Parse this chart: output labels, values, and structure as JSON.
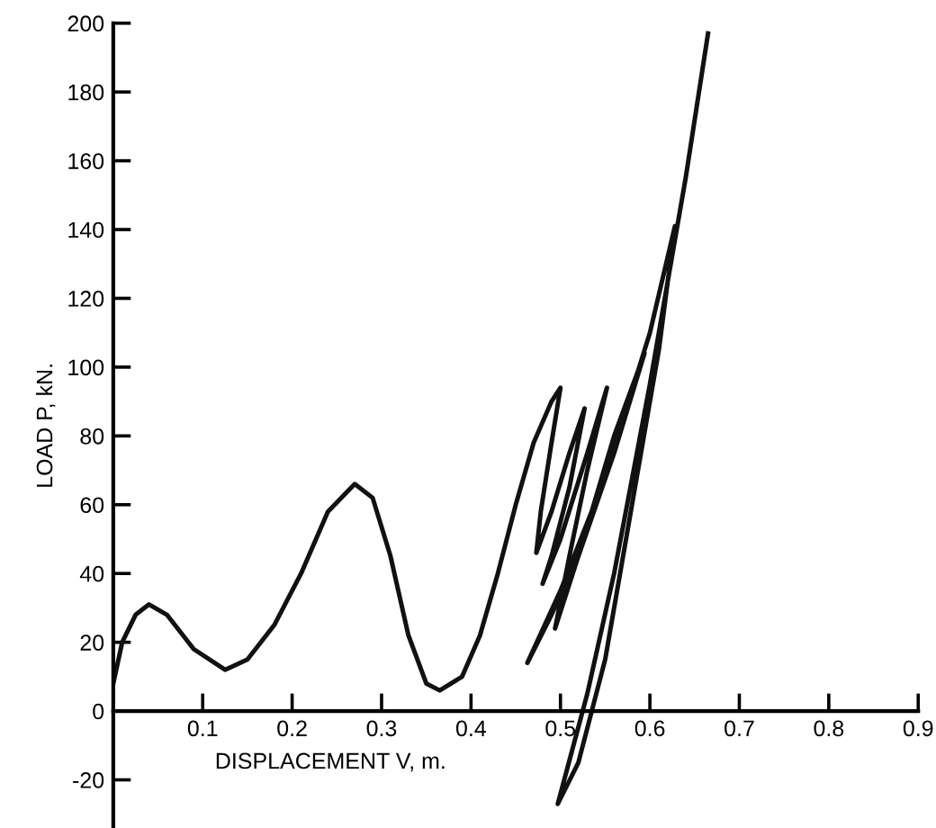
{
  "chart_data": {
    "type": "line",
    "xlabel": "DISPLACEMENT V, m.",
    "ylabel": "LOAD P, kN.",
    "series": [
      {
        "color": "#111111",
        "x": [
          0,
          0.01,
          0.025,
          0.04,
          0.06,
          0.09,
          0.125,
          0.15,
          0.18,
          0.21,
          0.24,
          0.27,
          0.29,
          0.31,
          0.33,
          0.35,
          0.365,
          0.39,
          0.41,
          0.43,
          0.45,
          0.47,
          0.49,
          0.5,
          0.49,
          0.478,
          0.473,
          0.49,
          0.51,
          0.527,
          0.51,
          0.49,
          0.48,
          0.5,
          0.53,
          0.552,
          0.53,
          0.51,
          0.494,
          0.52,
          0.56,
          0.594,
          0.56,
          0.52,
          0.49,
          0.463,
          0.5,
          0.55,
          0.6,
          0.628,
          0.61,
          0.58,
          0.55,
          0.52,
          0.497,
          0.53,
          0.56,
          0.6,
          0.64,
          0.665
        ],
        "values": [
          8,
          20,
          28,
          31,
          28,
          18,
          12,
          15,
          25,
          40,
          58,
          66,
          62,
          45,
          22,
          8,
          6,
          10,
          22,
          40,
          60,
          78,
          90,
          94,
          78,
          58,
          46,
          58,
          75,
          88,
          65,
          45,
          37,
          50,
          75,
          94,
          70,
          45,
          24,
          45,
          80,
          104,
          75,
          45,
          28,
          14,
          35,
          68,
          110,
          141,
          105,
          60,
          15,
          -15,
          -27,
          5,
          40,
          95,
          155,
          197
        ]
      }
    ],
    "xlim": [
      0,
      0.9
    ],
    "ylim": [
      -34,
      200
    ],
    "xticks": [
      0.1,
      0.2,
      0.3,
      0.4,
      0.5,
      0.6,
      0.7,
      0.8,
      0.9
    ],
    "yticks": [
      -20,
      0,
      20,
      40,
      60,
      80,
      100,
      120,
      140,
      160,
      180,
      200
    ],
    "grid": false,
    "legend": false,
    "marker": "none",
    "line_style": "solid"
  }
}
